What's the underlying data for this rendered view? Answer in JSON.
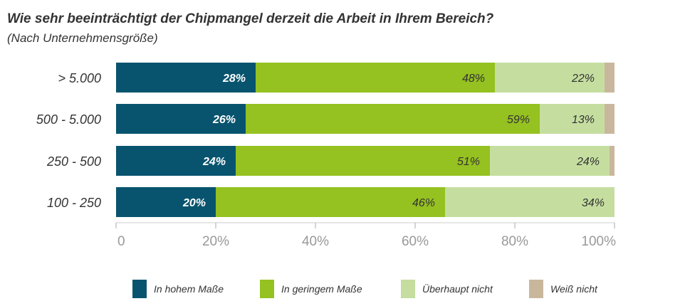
{
  "chart_data": {
    "type": "bar",
    "orientation": "horizontal",
    "stacked": true,
    "title": "Wie sehr beeinträchtigt der Chipmangel derzeit die Arbeit in Ihrem Bereich?",
    "subtitle": "(Nach Unternehmensgröße)",
    "categories": [
      "> 5.000",
      "500 - 5.000",
      "250 - 500",
      "100 - 250"
    ],
    "series": [
      {
        "name": "In hohem Maße",
        "color": "#08546e",
        "values": [
          28,
          26,
          24,
          20
        ],
        "labels": [
          "28%",
          "26%",
          "24%",
          "20%"
        ],
        "label_color": "#ffffff"
      },
      {
        "name": "In geringem Maße",
        "color": "#95c121",
        "values": [
          48,
          59,
          51,
          46
        ],
        "labels": [
          "48%",
          "59%",
          "51%",
          "46%"
        ],
        "label_color": "#333333"
      },
      {
        "name": "Überhaupt nicht",
        "color": "#c5dea0",
        "values": [
          22,
          13,
          24,
          34
        ],
        "labels": [
          "22%",
          "13%",
          "24%",
          "34%"
        ],
        "label_color": "#333333"
      },
      {
        "name": "Weiß nicht",
        "color": "#c9b79d",
        "values": [
          2,
          2,
          1,
          0
        ],
        "labels": [
          "",
          "",
          "",
          ""
        ],
        "label_color": "#333333"
      }
    ],
    "xlim": [
      0,
      100
    ],
    "xticks": [
      0,
      20,
      40,
      60,
      80,
      100
    ],
    "xtick_labels": [
      "0",
      "20%",
      "40%",
      "60%",
      "80%",
      "100%"
    ],
    "grid": false,
    "legend_position": "bottom"
  }
}
